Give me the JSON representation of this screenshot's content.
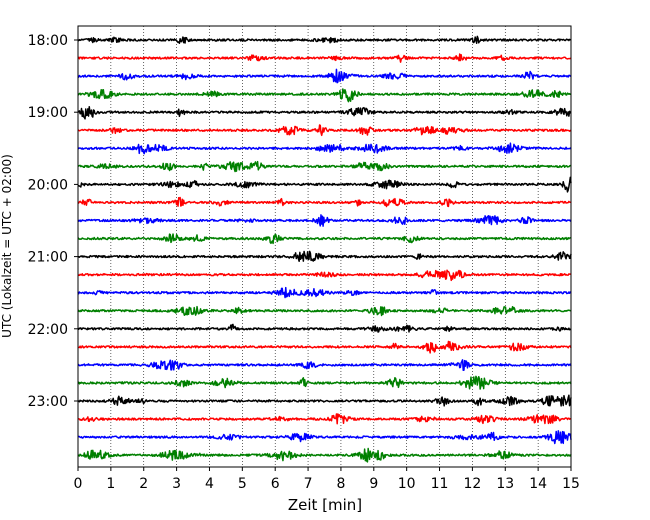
{
  "chart_data": {
    "type": "line",
    "title": "",
    "xlabel": "Zeit  [min]",
    "ylabel": "UTC (Lokalzeit = UTC + 02:00)",
    "xlim": [
      0,
      15
    ],
    "x_ticks": [
      0,
      1,
      2,
      3,
      4,
      5,
      6,
      7,
      8,
      9,
      10,
      11,
      12,
      13,
      14,
      15
    ],
    "y_ticks": [
      "18:00",
      "19:00",
      "20:00",
      "21:00",
      "22:00",
      "23:00"
    ],
    "grid": "vertical dotted lines at each minute",
    "trace_interval_minutes": 15,
    "color_cycle": [
      "#000000",
      "#ff0000",
      "#0000ff",
      "#008000"
    ],
    "series": [
      {
        "start": "18:00",
        "color": "#000000"
      },
      {
        "start": "18:15",
        "color": "#ff0000"
      },
      {
        "start": "18:30",
        "color": "#0000ff"
      },
      {
        "start": "18:45",
        "color": "#008000"
      },
      {
        "start": "19:00",
        "color": "#000000"
      },
      {
        "start": "19:15",
        "color": "#ff0000"
      },
      {
        "start": "19:30",
        "color": "#0000ff"
      },
      {
        "start": "19:45",
        "color": "#008000"
      },
      {
        "start": "20:00",
        "color": "#000000"
      },
      {
        "start": "20:15",
        "color": "#ff0000"
      },
      {
        "start": "20:30",
        "color": "#0000ff"
      },
      {
        "start": "20:45",
        "color": "#008000"
      },
      {
        "start": "21:00",
        "color": "#000000"
      },
      {
        "start": "21:15",
        "color": "#ff0000"
      },
      {
        "start": "21:30",
        "color": "#0000ff"
      },
      {
        "start": "21:45",
        "color": "#008000"
      },
      {
        "start": "22:00",
        "color": "#000000"
      },
      {
        "start": "22:15",
        "color": "#ff0000"
      },
      {
        "start": "22:30",
        "color": "#0000ff"
      },
      {
        "start": "22:45",
        "color": "#008000"
      },
      {
        "start": "23:00",
        "color": "#000000"
      },
      {
        "start": "23:15",
        "color": "#ff0000"
      },
      {
        "start": "23:30",
        "color": "#0000ff"
      },
      {
        "start": "23:45",
        "color": "#008000"
      }
    ]
  }
}
